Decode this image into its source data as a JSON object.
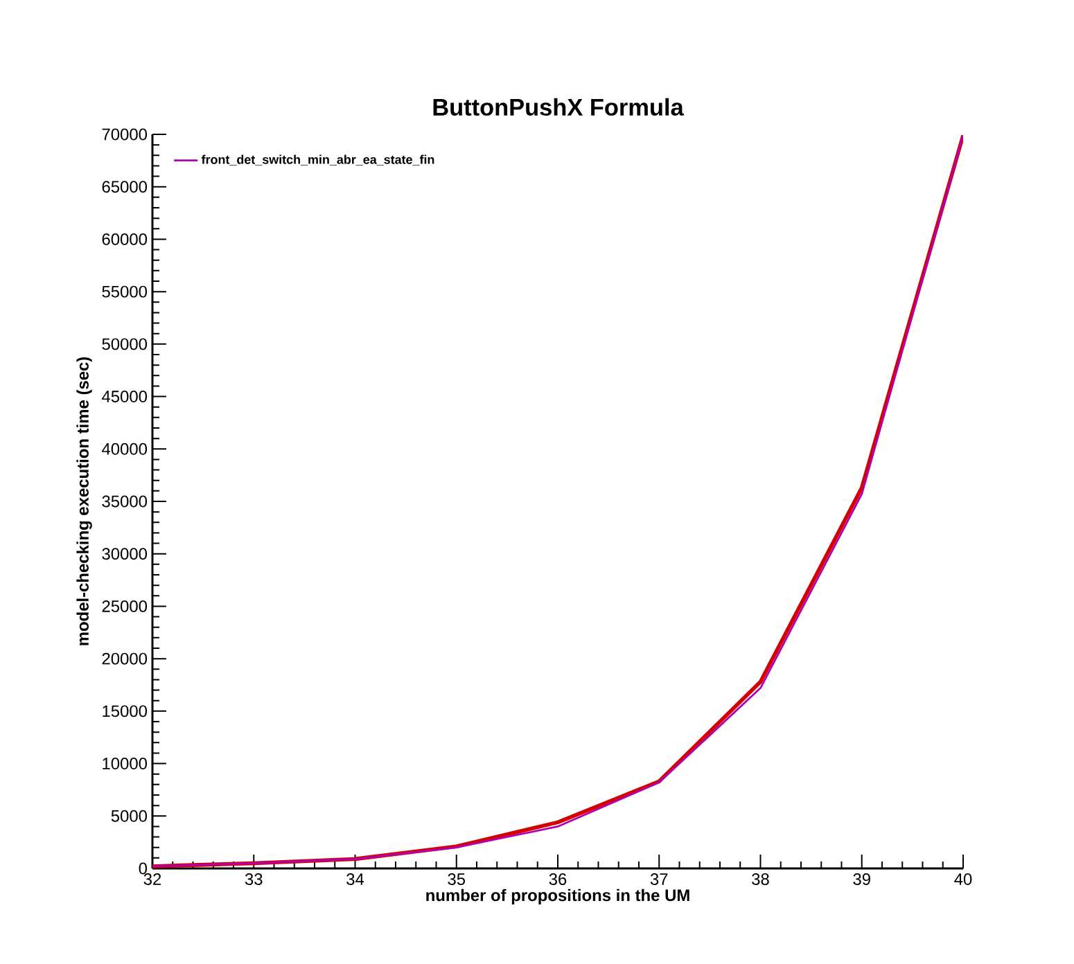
{
  "chart_data": {
    "type": "line",
    "title": "ButtonPushX Formula",
    "xlabel": "number of propositions in the UM",
    "ylabel": "model-checking execution time (sec)",
    "x": [
      32,
      33,
      34,
      35,
      36,
      37,
      38,
      39,
      40
    ],
    "series": [
      {
        "color": "#d40000",
        "values": [
          200,
          500,
          900,
          2100,
          4400,
          8300,
          17800,
          36300,
          69900
        ]
      },
      {
        "name": "front_det_switch_min_abr_ea_state_fin",
        "color": "#b000b0",
        "values": [
          200,
          500,
          900,
          2000,
          4000,
          8200,
          17200,
          35700,
          69900
        ]
      }
    ],
    "xlim": [
      32,
      40
    ],
    "xticks": [
      32,
      33,
      34,
      35,
      36,
      37,
      38,
      39,
      40
    ],
    "ylim": [
      0,
      70000
    ],
    "yticks": [
      0,
      5000,
      10000,
      15000,
      20000,
      25000,
      30000,
      35000,
      40000,
      45000,
      50000,
      55000,
      60000,
      65000,
      70000
    ],
    "grid": false,
    "legend": "top left",
    "marker": "none",
    "line_style": "solid"
  }
}
